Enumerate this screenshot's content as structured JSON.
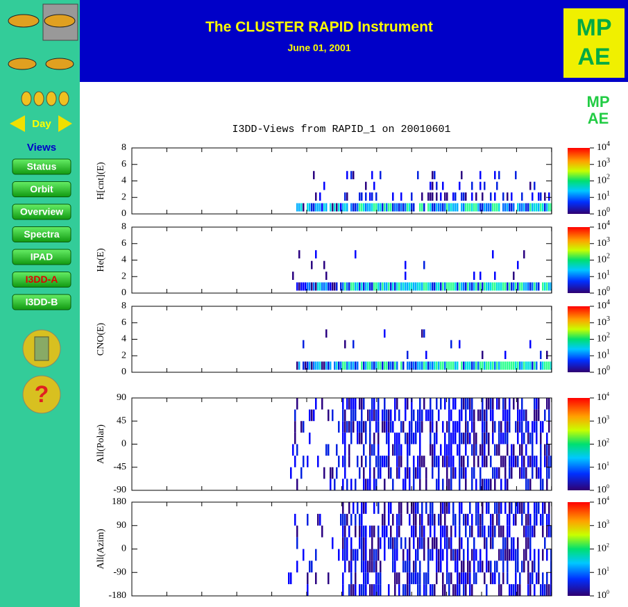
{
  "header": {
    "title": "The CLUSTER RAPID Instrument",
    "date": "June 01, 2001",
    "logo": [
      "MP",
      "AE"
    ]
  },
  "sidebar": {
    "day": "Day",
    "views_heading": "Views",
    "buttons": [
      "Status",
      "Orbit",
      "Overview",
      "Spectra",
      "IPAD",
      "I3DD-A",
      "I3DD-B"
    ],
    "active_index": 5
  },
  "plot": {
    "title": "I3DD-Views from RAPID_1 on 20010601",
    "panels": [
      {
        "ylabel": "H[cnt](E)",
        "yticks": [
          8,
          6,
          4,
          2,
          0
        ]
      },
      {
        "ylabel": "He(E)",
        "yticks": [
          8,
          6,
          4,
          2,
          0
        ]
      },
      {
        "ylabel": "CNO(E)",
        "yticks": [
          8,
          6,
          4,
          2,
          0
        ]
      },
      {
        "ylabel": "All(Polar)",
        "yticks": [
          90,
          45,
          0,
          -45,
          -90
        ]
      },
      {
        "ylabel": "All(Azim)",
        "yticks": [
          180,
          90,
          0,
          -90,
          -180
        ]
      }
    ],
    "colorbar": {
      "base": "10",
      "exponents": [
        "4",
        "3",
        "2",
        "1",
        "0"
      ]
    }
  }
}
